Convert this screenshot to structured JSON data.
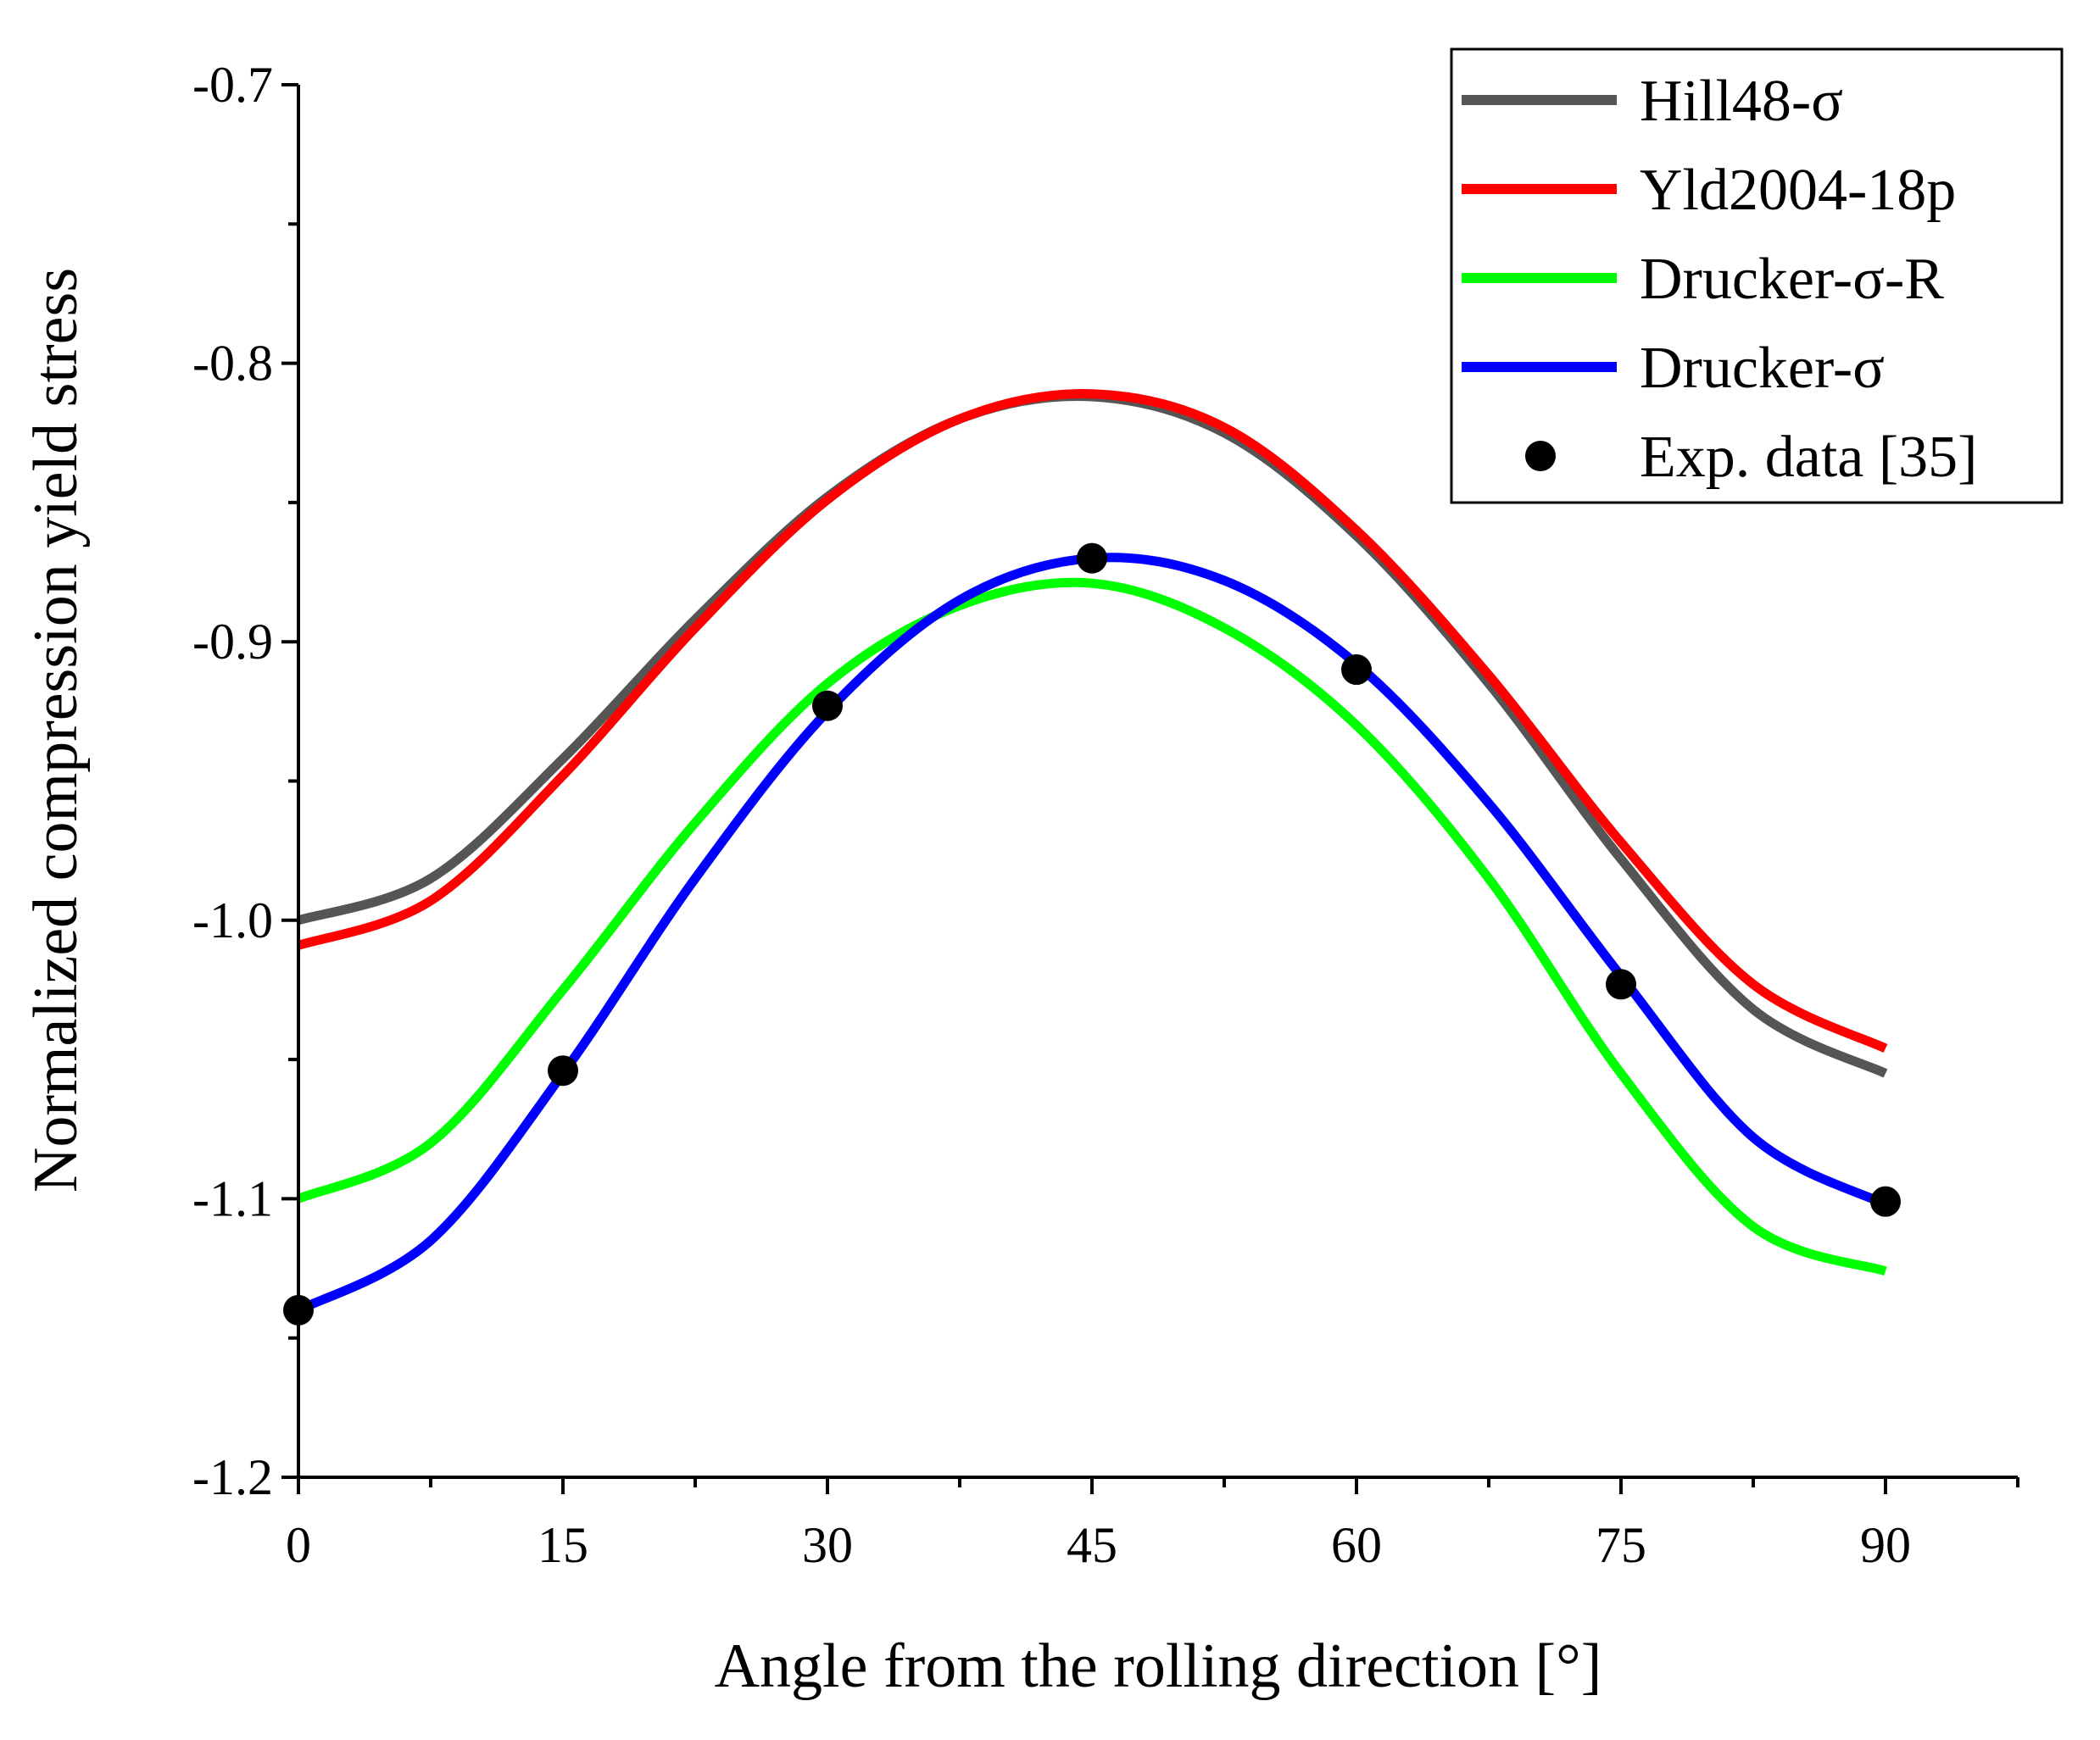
{
  "chart_data": {
    "type": "line",
    "title": "",
    "xlabel": "Angle from the rolling direction [°]",
    "ylabel": "Normalized compression yield stress",
    "xlim": [
      0,
      97.5
    ],
    "ylim": [
      -1.2,
      -0.7
    ],
    "x_ticks": [
      0,
      15,
      30,
      45,
      60,
      75,
      90
    ],
    "x_tick_labels": [
      "0",
      "15",
      "30",
      "45",
      "60",
      "75",
      "90"
    ],
    "y_ticks": [
      -1.2,
      -1.1,
      -1.0,
      -0.9,
      -0.8,
      -0.7
    ],
    "y_tick_labels": [
      "-1.2",
      "-1.1",
      "-1.0",
      "-0.9",
      "-0.8",
      "-0.7"
    ],
    "grid": false,
    "legend_position": "top-right",
    "series": [
      {
        "name": "Hill48-σ",
        "color": "#555555",
        "x": [
          0,
          7.5,
          15,
          22.5,
          30,
          37.5,
          45,
          52.5,
          60,
          67.5,
          75,
          82.5,
          90
        ],
        "y": [
          -1.0,
          -0.985,
          -0.942,
          -0.892,
          -0.848,
          -0.82,
          -0.812,
          -0.825,
          -0.862,
          -0.915,
          -0.978,
          -1.032,
          -1.055
        ]
      },
      {
        "name": "Yld2004-18p",
        "color": "#ff0000",
        "x": [
          0,
          7.5,
          15,
          22.5,
          30,
          37.5,
          45,
          52.5,
          60,
          67.5,
          75,
          82.5,
          90
        ],
        "y": [
          -1.009,
          -0.993,
          -0.948,
          -0.895,
          -0.849,
          -0.82,
          -0.811,
          -0.823,
          -0.86,
          -0.912,
          -0.972,
          -1.023,
          -1.046
        ]
      },
      {
        "name": "Drucker-σ-R",
        "color": "#00ff00",
        "x": [
          0,
          7.5,
          15,
          22.5,
          30,
          37.5,
          45,
          52.5,
          60,
          67.5,
          75,
          82.5,
          90
        ],
        "y": [
          -1.1,
          -1.08,
          -1.025,
          -0.965,
          -0.915,
          -0.887,
          -0.879,
          -0.895,
          -0.93,
          -0.985,
          -1.055,
          -1.11,
          -1.126
        ]
      },
      {
        "name": "Drucker-σ",
        "color": "#0000ff",
        "x": [
          0,
          7.5,
          15,
          22.5,
          30,
          37.5,
          45,
          52.5,
          60,
          67.5,
          75,
          82.5,
          90
        ],
        "y": [
          -1.14,
          -1.115,
          -1.055,
          -0.985,
          -0.925,
          -0.885,
          -0.87,
          -0.878,
          -0.908,
          -0.958,
          -1.02,
          -1.078,
          -1.102
        ]
      }
    ],
    "scatter": {
      "name": "Exp. data [35]",
      "color": "#000000",
      "x": [
        0,
        15,
        30,
        45,
        60,
        75,
        90
      ],
      "y": [
        -1.14,
        -1.054,
        -0.923,
        -0.87,
        -0.91,
        -1.023,
        -1.101
      ]
    }
  }
}
